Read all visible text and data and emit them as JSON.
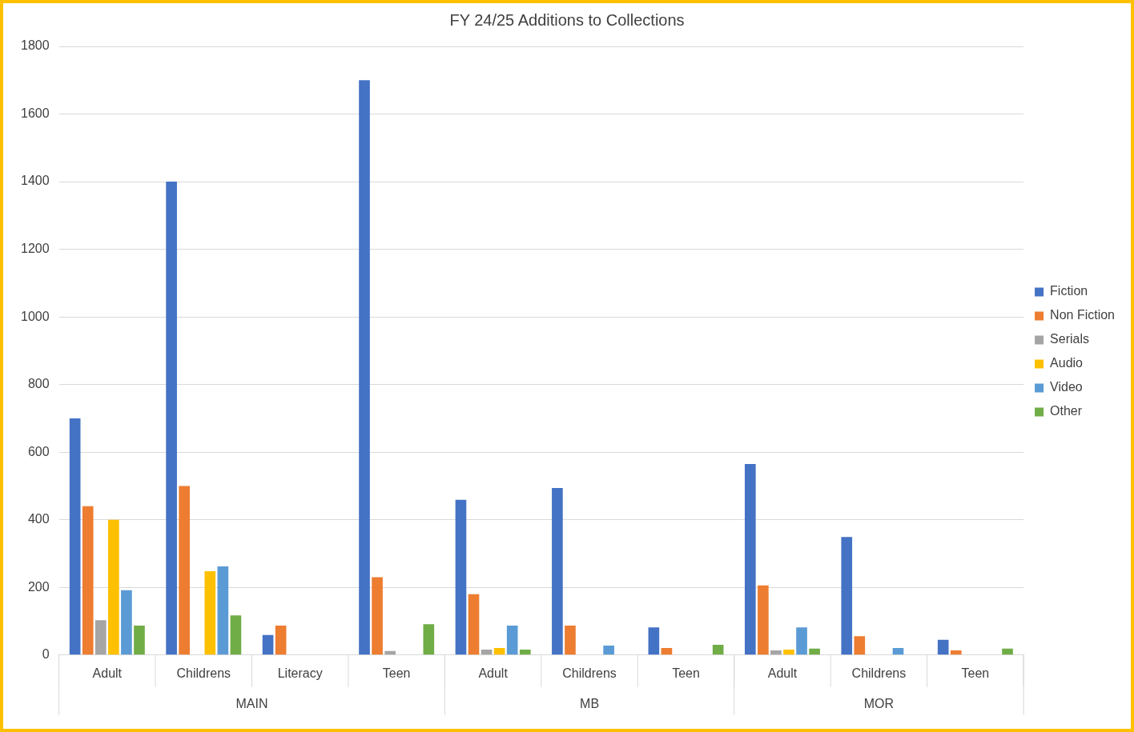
{
  "chart_data": {
    "type": "bar",
    "title": "FY 24/25 Additions to Collections",
    "categories": [
      "Adult",
      "Childrens",
      "Literacy",
      "Teen",
      "Adult",
      "Childrens",
      "Teen",
      "Adult",
      "Childrens",
      "Teen"
    ],
    "series": [
      {
        "name": "Fiction",
        "color": "#4472c4",
        "values": [
          700,
          1400,
          59,
          1700,
          459,
          494,
          82,
          565,
          349,
          45
        ]
      },
      {
        "name": "Non Fiction",
        "color": "#ed7d31",
        "values": [
          440,
          500,
          87,
          230,
          180,
          87,
          21,
          206,
          56,
          14
        ]
      },
      {
        "name": "Serials",
        "color": "#a5a5a5",
        "values": [
          103,
          0,
          0,
          12,
          16,
          0,
          0,
          14,
          0,
          0
        ]
      },
      {
        "name": "Audio",
        "color": "#ffc000",
        "values": [
          400,
          248,
          0,
          0,
          21,
          0,
          0,
          16,
          0,
          0
        ]
      },
      {
        "name": "Video",
        "color": "#5b9bd5",
        "values": [
          192,
          262,
          0,
          0,
          87,
          28,
          0,
          82,
          21,
          0
        ]
      },
      {
        "name": "Other",
        "color": "#70ad47",
        "values": [
          87,
          117,
          0,
          91,
          16,
          0,
          30,
          19,
          0,
          19
        ]
      }
    ],
    "annotations": [
      "MAIN",
      "MB",
      "MOR"
    ],
    "ylim": [
      0,
      1800
    ],
    "yticks": [
      0,
      200,
      400,
      600,
      800,
      1000,
      1200,
      1400,
      1600,
      1800
    ],
    "grid": "y",
    "legend": "right"
  }
}
